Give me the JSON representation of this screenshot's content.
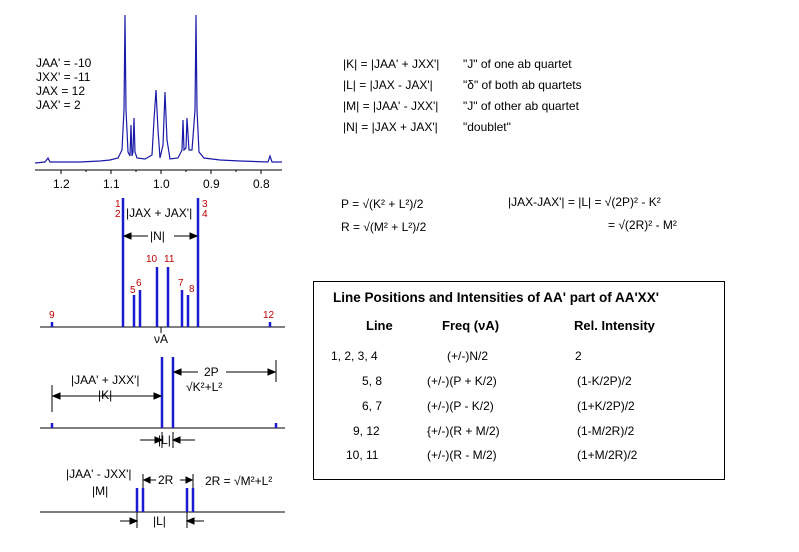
{
  "coupling_constants": [
    "JAA' = -10",
    "JXX' = -11",
    "JAX = 12",
    "JAX' = 2"
  ],
  "spectrum_axis_ticks": [
    "1.2",
    "1.1",
    "1.0",
    "0.9",
    "0.8"
  ],
  "definitions": [
    {
      "lhs": "|K| = |JAA' + JXX'|",
      "desc": "\"J\" of one ab quartet"
    },
    {
      "lhs": "|L| = |JAX - JAX'|",
      "desc": "\"δ\" of both ab quartets"
    },
    {
      "lhs": "|M| = |JAA' - JXX'|",
      "desc": "\"J\" of other ab quartet"
    },
    {
      "lhs": "|N| = |JAX + JAX'|",
      "desc": "\"doublet\""
    }
  ],
  "formulas": {
    "p": "P = √(K² + L²)/2",
    "r": "R = √(M² + L²)/2",
    "l1": "|JAX-JAX'| = |L| = √(2P)² - K²",
    "l2": "= √(2R)² - M²"
  },
  "stick_labels": {
    "l1": "1",
    "l2": "2",
    "l3": "3",
    "l4": "4",
    "l5": "5",
    "l6": "6",
    "l7": "7",
    "l8": "8",
    "l9": "9",
    "l10": "10",
    "l11": "11",
    "l12": "12"
  },
  "diagram_labels": {
    "jax_sum": "|JAX + JAX'|",
    "n": "|N|",
    "nu_a": "νA",
    "jaa_sum": "|JAA' + JXX'|",
    "k": "|K|",
    "two_p": "2P",
    "two_p_formula": "√K²+L²",
    "l_a": "|L|",
    "jaa_diff": "|JAA' - JXX'|",
    "m": "|M|",
    "two_r": "2R",
    "two_r_formula": "2R = √M²+L²",
    "l_b": "|L|"
  },
  "table": {
    "title": "Line Positions and Intensities of AA' part of AA'XX'",
    "headers": [
      "Line",
      "Freq (νA)",
      "Rel. Intensity"
    ],
    "rows": [
      [
        "1, 2, 3, 4",
        "(+/-)N/2",
        "2"
      ],
      [
        "5, 8",
        "(+/-)(P + K/2)",
        "(1-K/2P)/2"
      ],
      [
        "6, 7",
        "(+/-)(P - K/2)",
        "(1+K/2P)/2"
      ],
      [
        "9, 12",
        "{+/-)(R + M/2)",
        "(1-M/2R)/2"
      ],
      [
        "10, 11",
        "(+/-)(R - M/2)",
        "(1+M/2R)/2"
      ]
    ]
  }
}
